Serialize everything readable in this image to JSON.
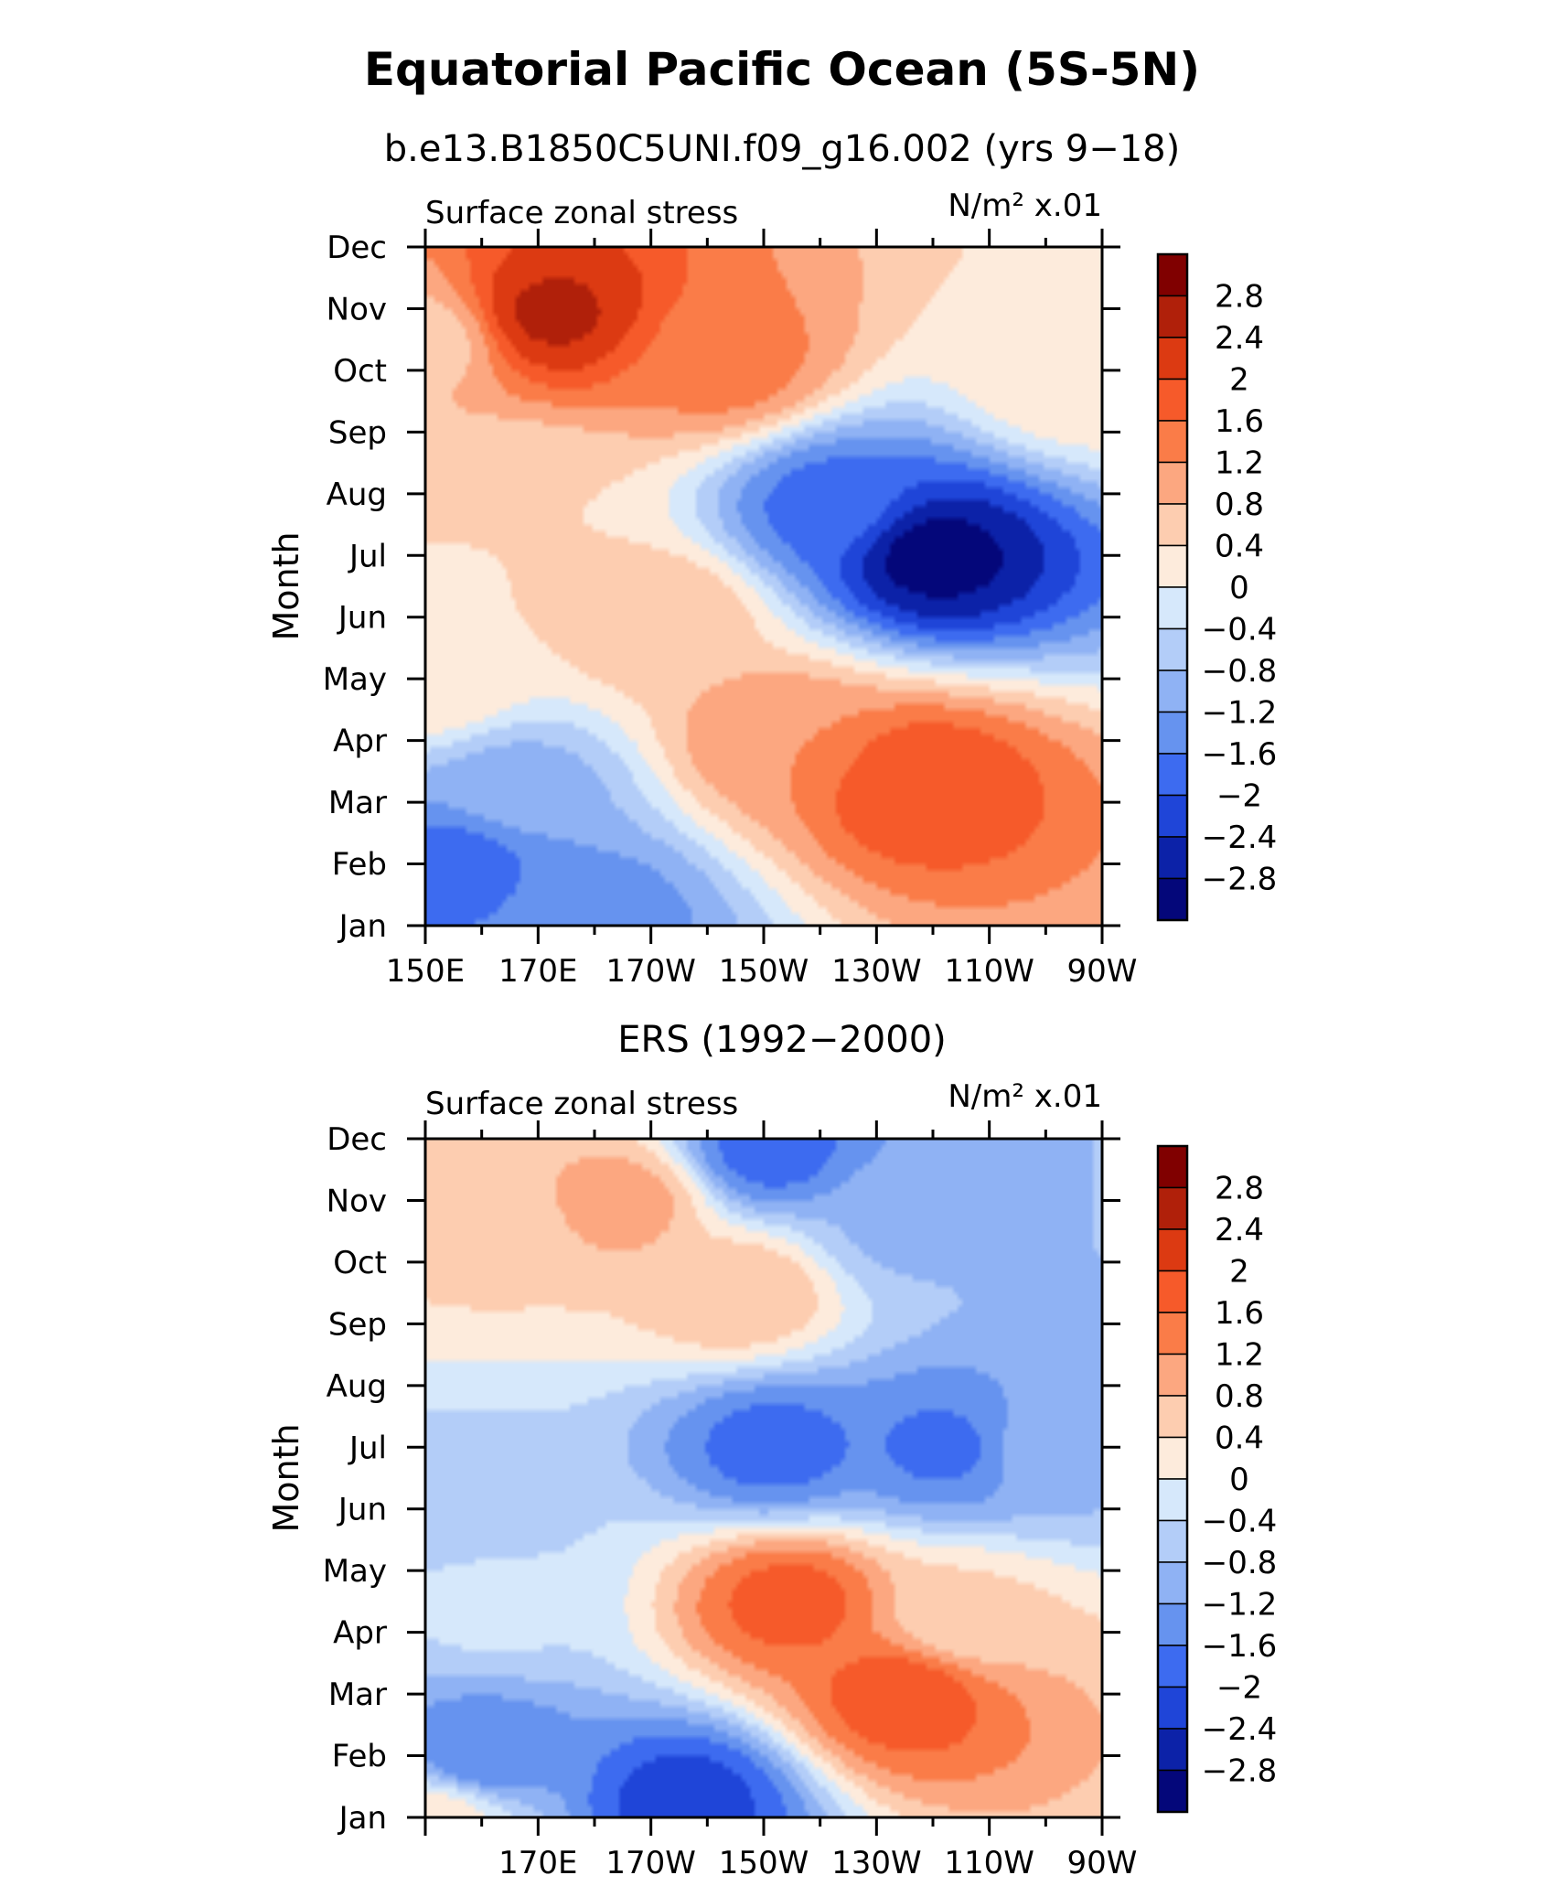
{
  "title": "Equatorial Pacific Ocean (5S-5N)",
  "colorbar": {
    "labels": [
      "2.8",
      "2.4",
      "2",
      "1.6",
      "1.2",
      "0.8",
      "0.4",
      "0",
      "−0.4",
      "−0.8",
      "−1.2",
      "−1.6",
      "−2",
      "−2.4",
      "−2.8"
    ],
    "colors": [
      "#800000",
      "#b0200a",
      "#dc3a12",
      "#f65a2a",
      "#fa7c48",
      "#fca780",
      "#fdcdb0",
      "#fdebdc",
      "#d6e8fb",
      "#b3cdf8",
      "#8fb2f4",
      "#6693ef",
      "#3d6bf0",
      "#1f45d8",
      "#0c22a8",
      "#04077a"
    ]
  },
  "chart_data": [
    {
      "type": "heatmap",
      "subtitle": "b.e13.B1850C5UNI.f09_g16.002 (yrs 9−18)",
      "left_label": "Surface zonal stress",
      "right_label": "N/m² x.01",
      "ylabel": "Month",
      "y_ticks": [
        "Jan",
        "Feb",
        "Mar",
        "Apr",
        "May",
        "Jun",
        "Jul",
        "Aug",
        "Sep",
        "Oct",
        "Nov",
        "Dec"
      ],
      "x_ticks": [
        "150E",
        "170E",
        "170W",
        "150W",
        "130W",
        "110W",
        "90W"
      ],
      "x_range": [
        150,
        270
      ],
      "y_range": [
        1,
        12
      ],
      "levels": [
        -2.8,
        -2.4,
        -2.0,
        -1.6,
        -1.2,
        -0.8,
        -0.4,
        0,
        0.4,
        0.8,
        1.2,
        1.6,
        2.0,
        2.4,
        2.8
      ],
      "features": [
        {
          "x": 172,
          "y": 10.9,
          "value": 2.5
        },
        {
          "x": 203,
          "y": 10.1,
          "value": 1.4
        },
        {
          "x": 150,
          "y": 10.5,
          "value": 0.6
        },
        {
          "x": 265,
          "y": 10.0,
          "value": 0.4
        },
        {
          "x": 240,
          "y": 7.0,
          "value": -3.0
        },
        {
          "x": 222,
          "y": 7.8,
          "value": -1.8
        },
        {
          "x": 156,
          "y": 2.0,
          "value": -1.8
        },
        {
          "x": 180,
          "y": 1.2,
          "value": -1.4
        },
        {
          "x": 166,
          "y": 3.2,
          "value": -1.0
        },
        {
          "x": 237,
          "y": 3.3,
          "value": 2.0
        },
        {
          "x": 213,
          "y": 4.0,
          "value": 1.2
        },
        {
          "x": 192,
          "y": 6.0,
          "value": 0.8
        },
        {
          "x": 165,
          "y": 8.0,
          "value": 0.4
        },
        {
          "x": 151,
          "y": 5.0,
          "value": 0.4
        }
      ]
    },
    {
      "type": "heatmap",
      "subtitle": "ERS (1992−2000)",
      "left_label": "Surface zonal stress",
      "right_label": "N/m² x.01",
      "ylabel": "Month",
      "y_ticks": [
        "Jan",
        "Feb",
        "Mar",
        "Apr",
        "May",
        "Jun",
        "Jul",
        "Aug",
        "Sep",
        "Oct",
        "Nov",
        "Dec"
      ],
      "x_ticks": [
        "170E",
        "170W",
        "150W",
        "130W",
        "110W",
        "90W"
      ],
      "x_range": [
        150,
        270
      ],
      "y_range": [
        1,
        12
      ],
      "levels": [
        -2.8,
        -2.4,
        -2.0,
        -1.6,
        -1.2,
        -0.8,
        -0.4,
        0,
        0.4,
        0.8,
        1.2,
        1.6,
        2.0,
        2.4,
        2.8
      ],
      "features": [
        {
          "x": 211,
          "y": 11.8,
          "value": -1.8
        },
        {
          "x": 235,
          "y": 10.6,
          "value": -0.9
        },
        {
          "x": 185,
          "y": 11.0,
          "value": 1.0
        },
        {
          "x": 160,
          "y": 10.5,
          "value": 0.5
        },
        {
          "x": 206,
          "y": 9.5,
          "value": 0.8
        },
        {
          "x": 212,
          "y": 7.0,
          "value": -1.8
        },
        {
          "x": 242,
          "y": 7.0,
          "value": -1.7
        },
        {
          "x": 262,
          "y": 7.0,
          "value": -0.9
        },
        {
          "x": 158,
          "y": 6.0,
          "value": -0.6
        },
        {
          "x": 215,
          "y": 4.5,
          "value": 1.8
        },
        {
          "x": 235,
          "y": 3.0,
          "value": 1.9
        },
        {
          "x": 245,
          "y": 4.2,
          "value": 0.5
        },
        {
          "x": 160,
          "y": 2.0,
          "value": -1.6
        },
        {
          "x": 196,
          "y": 1.3,
          "value": -2.2
        },
        {
          "x": 162,
          "y": 4.5,
          "value": -0.3
        },
        {
          "x": 153,
          "y": 1.0,
          "value": 0.2
        }
      ]
    }
  ]
}
